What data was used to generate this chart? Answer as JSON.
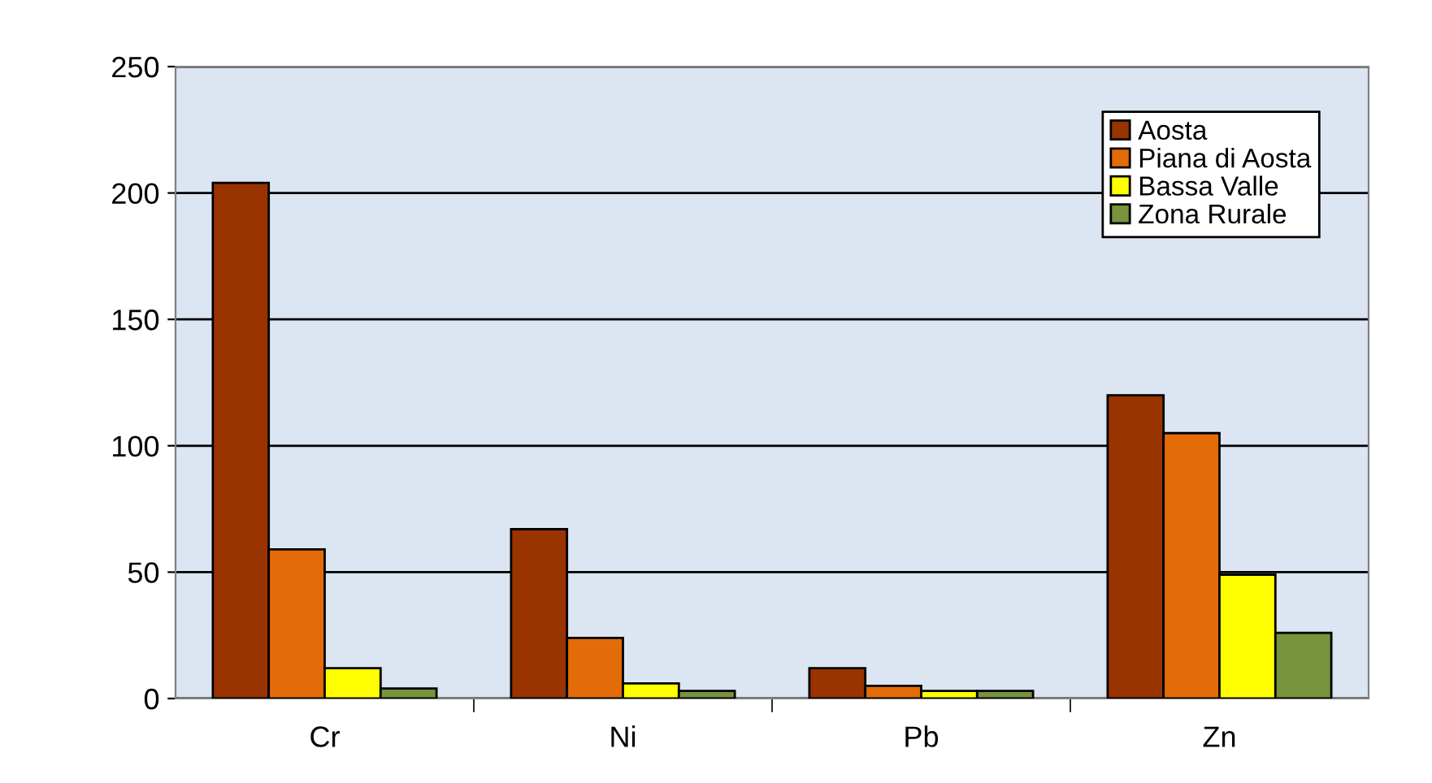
{
  "chart_data": {
    "type": "bar",
    "categories": [
      "Cr",
      "Ni",
      "Pb",
      "Zn"
    ],
    "series": [
      {
        "name": "Aosta",
        "color": "#993300",
        "values": [
          204,
          67,
          12,
          120
        ]
      },
      {
        "name": "Piana di Aosta",
        "color": "#e36c09",
        "values": [
          59,
          24,
          5,
          105
        ]
      },
      {
        "name": "Bassa Valle",
        "color": "#ffff00",
        "values": [
          12,
          6,
          3,
          49
        ]
      },
      {
        "name": "Zona Rurale",
        "color": "#77933c",
        "values": [
          4,
          3,
          3,
          26
        ]
      }
    ],
    "ylim": [
      0,
      250
    ],
    "yticks": [
      0,
      50,
      100,
      150,
      200,
      250
    ],
    "grid": "y",
    "legend": "top right"
  }
}
